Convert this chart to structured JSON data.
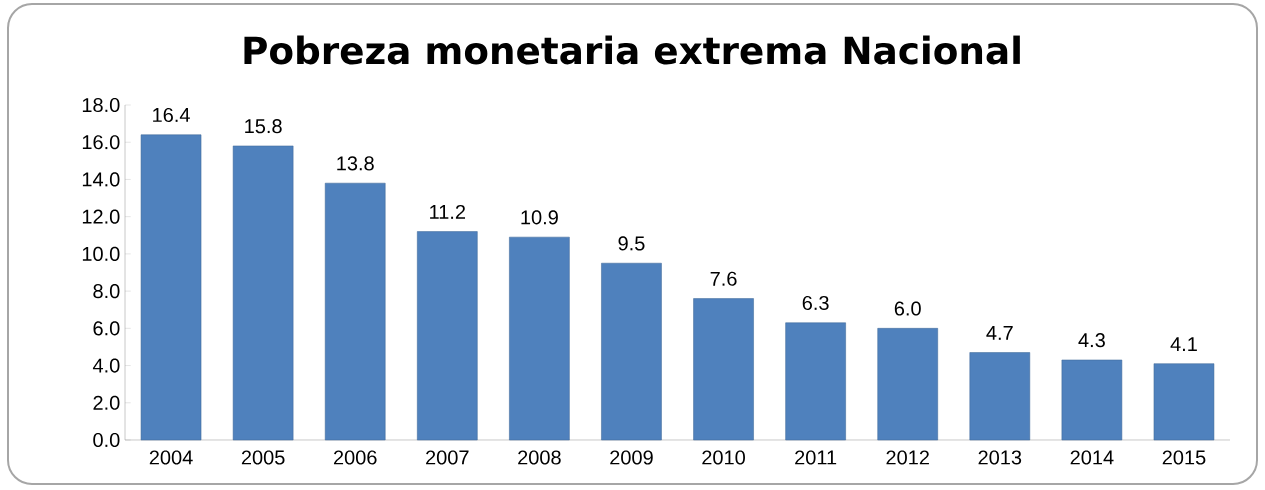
{
  "chart_data": {
    "type": "bar",
    "title": "Pobreza monetaria extrema Nacional",
    "categories": [
      "2004",
      "2005",
      "2006",
      "2007",
      "2008",
      "2009",
      "2010",
      "2011",
      "2012",
      "2013",
      "2014",
      "2015"
    ],
    "values": [
      16.4,
      15.8,
      13.8,
      11.2,
      10.9,
      9.5,
      7.6,
      6.3,
      6.0,
      4.7,
      4.3,
      4.1
    ],
    "value_labels": [
      "16.4",
      "15.8",
      "13.8",
      "11.2",
      "10.9",
      "9.5",
      "7.6",
      "6.3",
      "6.0",
      "4.7",
      "4.3",
      "4.1"
    ],
    "color": "#4f81bd",
    "ylim": [
      0,
      18
    ],
    "yticks": [
      {
        "value": 0,
        "label": "0.0"
      },
      {
        "value": 2,
        "label": "2.0"
      },
      {
        "value": 4,
        "label": "4.0"
      },
      {
        "value": 6,
        "label": "6.0"
      },
      {
        "value": 8,
        "label": "8.0"
      },
      {
        "value": 10,
        "label": "10.0"
      },
      {
        "value": 12,
        "label": "12.0"
      },
      {
        "value": 14,
        "label": "14.0"
      },
      {
        "value": 16,
        "label": "16.0"
      },
      {
        "value": 18,
        "label": "18.0"
      }
    ],
    "grid": false
  }
}
